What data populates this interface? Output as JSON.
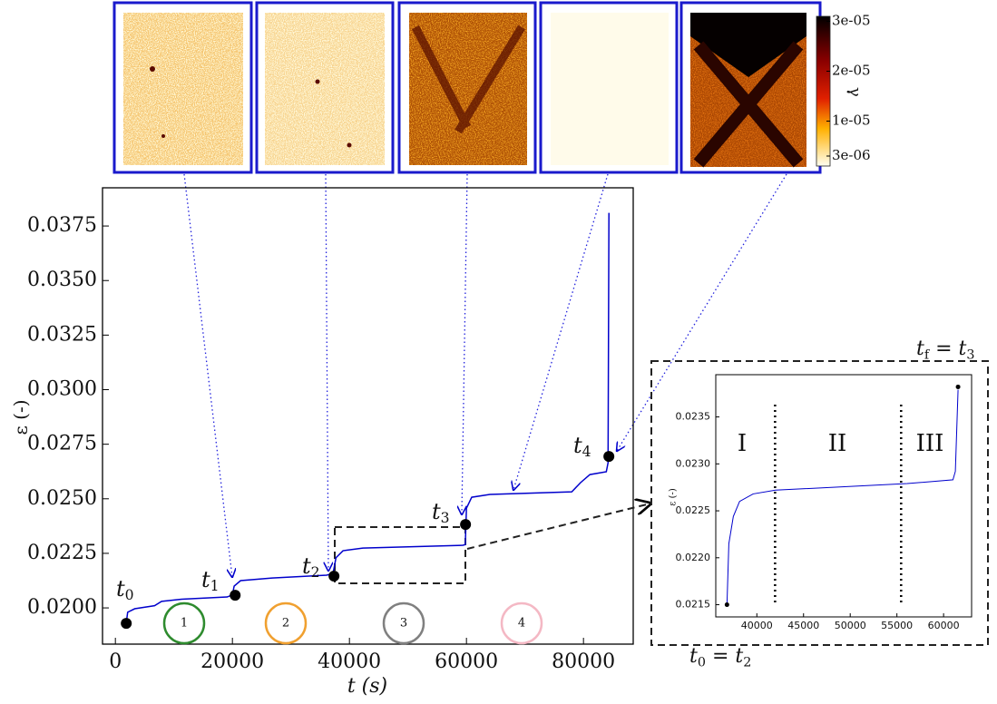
{
  "chart_data": [
    {
      "type": "line",
      "x_label": "t (s)",
      "y_label": "ε (-)",
      "x": [
        1900,
        2100,
        3300,
        6700,
        7900,
        11300,
        19100,
        20000,
        20300,
        21400,
        26800,
        36100,
        37200,
        37700,
        38900,
        42300,
        59400,
        59800,
        60000,
        60900,
        64000,
        78000,
        79500,
        81100,
        83900,
        84200,
        84350
      ],
      "series": [
        {
          "color": "#0000cc",
          "values": [
            0.0194,
            0.0198,
            0.01996,
            0.0201,
            0.0203,
            0.0204,
            0.0205,
            0.0206,
            0.021,
            0.02125,
            0.02137,
            0.0215,
            0.02158,
            0.0223,
            0.02262,
            0.02274,
            0.02287,
            0.0229,
            0.02457,
            0.02507,
            0.0252,
            0.02532,
            0.02574,
            0.02611,
            0.02624,
            0.02665,
            0.0381
          ]
        }
      ],
      "points": {
        "color": "#000000",
        "x": [
          1860,
          20470,
          37360,
          59840,
          84340
        ],
        "values": [
          0.01929,
          0.02058,
          0.02146,
          0.02382,
          0.02694
        ]
      },
      "annotations": [
        [
          "t",
          "0"
        ],
        [
          "t",
          "1"
        ],
        [
          "t",
          "2"
        ],
        [
          "t",
          "3"
        ],
        [
          "t",
          "4"
        ]
      ],
      "phases": [
        {
          "label": "1",
          "color": "#2e8b2e"
        },
        {
          "label": "2",
          "color": "#f0a030"
        },
        {
          "label": "3",
          "color": "#808080"
        },
        {
          "label": "4",
          "color": "#f4b8c4"
        }
      ],
      "xlim": [
        -2200,
        88500
      ],
      "ylim": [
        0.01834,
        0.03925
      ],
      "xticks": [
        0,
        20000,
        40000,
        60000,
        80000
      ],
      "yticks": [
        {
          "value": 0.02,
          "label": "0.0200"
        },
        0.0225,
        {
          "value": 0.025,
          "label": "0.0250"
        },
        0.0275,
        {
          "value": 0.03,
          "label": "0.0300"
        },
        0.0325,
        {
          "value": 0.035,
          "label": "0.0350"
        },
        0.0375
      ]
    },
    {
      "type": "line",
      "y_label": "ε (-)",
      "top_label": [
        "t",
        "f",
        " = t",
        "3"
      ],
      "bottom_label": [
        "t",
        "0",
        " = t",
        "2"
      ],
      "x": [
        36800,
        37000,
        37480,
        38150,
        39600,
        42000,
        56100,
        61000,
        61260,
        61550
      ],
      "series": [
        {
          "color": "#0000cc",
          "values": [
            0.0215,
            0.02215,
            0.02244,
            0.0226,
            0.02268,
            0.02272,
            0.02279,
            0.02283,
            0.02292,
            0.02379
          ]
        }
      ],
      "points": {
        "color": "#000000",
        "x": [
          36800,
          61550
        ],
        "values": [
          0.0215,
          0.02382
        ]
      },
      "dividers": [
        41950,
        55450
      ],
      "regions": [
        "I",
        "II",
        "III"
      ],
      "xlim": [
        35600,
        63000
      ],
      "ylim": [
        0.02137,
        0.02395
      ],
      "xticks": [
        40000,
        45000,
        50000,
        55000,
        60000
      ],
      "yticks": [
        0.0215,
        {
          "value": 0.022,
          "label": "0.0220"
        },
        0.0225,
        {
          "value": 0.023,
          "label": "0.0230"
        },
        0.0235
      ]
    }
  ],
  "colorbar": {
    "label": "γ",
    "lim": [
      1e-06,
      3.1e-05
    ],
    "ticks": [
      {
        "value": 3e-05,
        "label": "3e-05"
      },
      {
        "value": 2e-05,
        "label": "2e-05"
      },
      {
        "value": 1e-05,
        "label": "1e-05"
      },
      {
        "value": 3e-06,
        "label": "3e-06"
      }
    ]
  }
}
